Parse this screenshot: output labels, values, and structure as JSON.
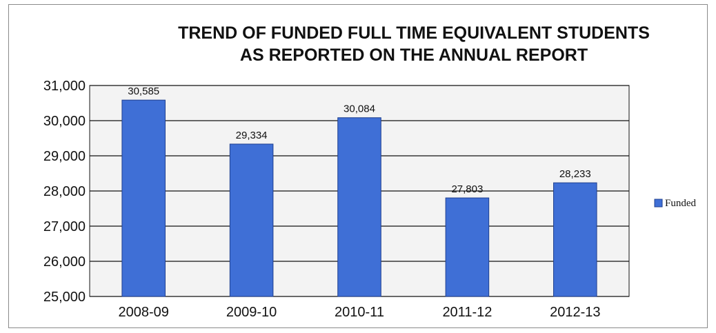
{
  "chart_data": {
    "type": "bar",
    "title": [
      "TREND OF FUNDED FULL TIME EQUIVALENT STUDENTS",
      "AS REPORTED ON THE ANNUAL REPORT"
    ],
    "categories": [
      "2008-09",
      "2009-10",
      "2010-11",
      "2011-12",
      "2012-13"
    ],
    "series": [
      {
        "name": "Funded",
        "values": [
          30585,
          29334,
          30084,
          27803,
          28233
        ]
      }
    ],
    "data_labels": [
      "30,585",
      "29,334",
      "30,084",
      "27,803",
      "28,233"
    ],
    "ylim": [
      25000,
      31000
    ],
    "yticks": [
      "25,000",
      "26,000",
      "27,000",
      "28,000",
      "29,000",
      "30,000",
      "31,000"
    ],
    "grid": true,
    "legend_position": "right",
    "colors": {
      "bar_fill": "#3f6fd6",
      "bar_edge": "#1f3f8f",
      "plot_bg": "#f3f3f3",
      "grid": "#111111"
    }
  }
}
